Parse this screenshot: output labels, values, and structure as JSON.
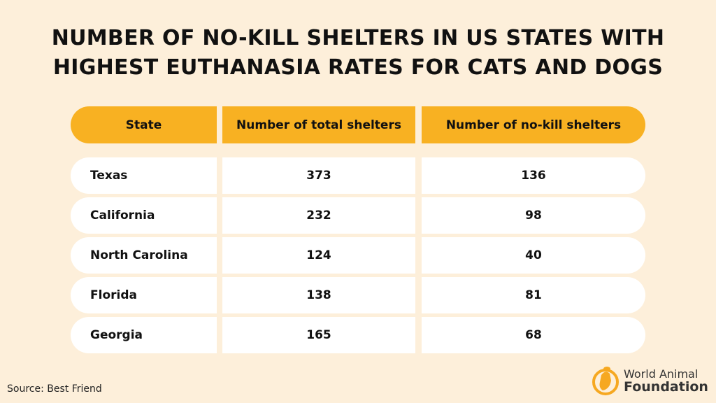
{
  "title_line1": "NUMBER OF NO-KILL SHELTERS IN US STATES WITH",
  "title_line2": "HIGHEST EUTHANASIA RATES FOR CATS AND DOGS",
  "colors": {
    "background": "#fdefda",
    "header": "#f8b122",
    "row": "#ffffff"
  },
  "chart_data": {
    "type": "table",
    "title": "NUMBER OF NO-KILL SHELTERS IN US STATES WITH HIGHEST EUTHANASIA RATES FOR CATS AND DOGS",
    "columns": [
      "State",
      "Number of total shelters",
      "Number of no-kill shelters"
    ],
    "rows": [
      [
        "Texas",
        "373",
        "136"
      ],
      [
        "California",
        "232",
        "98"
      ],
      [
        "North Carolina",
        "124",
        "40"
      ],
      [
        "Florida",
        "138",
        "81"
      ],
      [
        "Georgia",
        "165",
        "68"
      ]
    ]
  },
  "source": "Source: Best Friend",
  "logo": {
    "line1": "World Animal",
    "line2": "Foundation"
  }
}
